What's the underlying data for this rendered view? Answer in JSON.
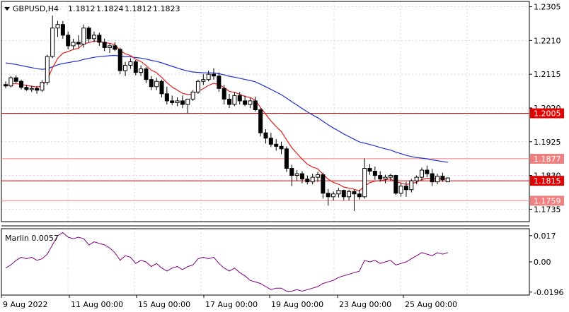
{
  "chart_data": {
    "type": "candlestick",
    "header": {
      "symbol": "GBPUSD,H4",
      "open": "1.1812",
      "high": "1.1824",
      "low": "1.1812",
      "close": "1.1823"
    },
    "price_axis": {
      "ticks": [
        "1.2305",
        "1.2210",
        "1.2115",
        "1.2020",
        "1.1925",
        "1.1830",
        "1.1735"
      ]
    },
    "levels": [
      {
        "label": "1.2005",
        "value": 1.2005,
        "color": "#e00000"
      },
      {
        "label": "1.1877",
        "value": 1.1877,
        "color": "#f08080"
      },
      {
        "label": "1.1815",
        "value": 1.1815,
        "color": "#e00000"
      },
      {
        "label": "1.1759",
        "value": 1.1759,
        "color": "#f08080"
      }
    ],
    "x_labels": [
      "9 Aug 2022",
      "11 Aug 00:00",
      "15 Aug 00:00",
      "17 Aug 00:00",
      "19 Aug 00:00",
      "23 Aug 00:00",
      "25 Aug 00:00"
    ],
    "candles": [
      [
        1.2086,
        1.2095,
        1.2075,
        1.2082
      ],
      [
        1.2082,
        1.211,
        1.2078,
        1.2105
      ],
      [
        1.2105,
        1.2112,
        1.209,
        1.2095
      ],
      [
        1.2095,
        1.21,
        1.2072,
        1.2078
      ],
      [
        1.2078,
        1.2085,
        1.2068,
        1.2072
      ],
      [
        1.2072,
        1.2082,
        1.2065,
        1.2075
      ],
      [
        1.2075,
        1.2082,
        1.206,
        1.207
      ],
      [
        1.207,
        1.2098,
        1.2065,
        1.2092
      ],
      [
        1.2092,
        1.217,
        1.2085,
        1.2165
      ],
      [
        1.2165,
        1.228,
        1.216,
        1.2245
      ],
      [
        1.2245,
        1.2265,
        1.222,
        1.2255
      ],
      [
        1.2255,
        1.2265,
        1.2215,
        1.2225
      ],
      [
        1.2225,
        1.2235,
        1.2185,
        1.2195
      ],
      [
        1.2195,
        1.2215,
        1.2185,
        1.2205
      ],
      [
        1.2205,
        1.2225,
        1.219,
        1.22
      ],
      [
        1.22,
        1.2255,
        1.219,
        1.2245
      ],
      [
        1.2245,
        1.225,
        1.2205,
        1.2215
      ],
      [
        1.2215,
        1.2235,
        1.2205,
        1.2225
      ],
      [
        1.2225,
        1.2232,
        1.2195,
        1.2205
      ],
      [
        1.2205,
        1.2215,
        1.218,
        1.219
      ],
      [
        1.219,
        1.22,
        1.2175,
        1.2195
      ],
      [
        1.2195,
        1.2205,
        1.218,
        1.2185
      ],
      [
        1.2185,
        1.219,
        1.2115,
        1.2125
      ],
      [
        1.2125,
        1.215,
        1.211,
        1.214
      ],
      [
        1.214,
        1.216,
        1.213,
        1.215
      ],
      [
        1.215,
        1.2155,
        1.2112,
        1.212
      ],
      [
        1.212,
        1.214,
        1.211,
        1.213
      ],
      [
        1.213,
        1.2135,
        1.209,
        1.21
      ],
      [
        1.21,
        1.211,
        1.207,
        1.208
      ],
      [
        1.208,
        1.2105,
        1.207,
        1.2095
      ],
      [
        1.2095,
        1.21,
        1.205,
        1.206
      ],
      [
        1.206,
        1.208,
        1.203,
        1.204
      ],
      [
        1.204,
        1.2055,
        1.2028,
        1.2035
      ],
      [
        1.2035,
        1.205,
        1.2025,
        1.204
      ],
      [
        1.204,
        1.2055,
        1.202,
        1.203
      ],
      [
        1.203,
        1.2045,
        1.2005,
        1.2045
      ],
      [
        1.2045,
        1.207,
        1.204,
        1.2065
      ],
      [
        1.2065,
        1.21,
        1.206,
        1.2095
      ],
      [
        1.2095,
        1.2115,
        1.2085,
        1.21
      ],
      [
        1.21,
        1.2125,
        1.2095,
        1.2115
      ],
      [
        1.2115,
        1.2132,
        1.21,
        1.211
      ],
      [
        1.211,
        1.212,
        1.2065,
        1.2075
      ],
      [
        1.2075,
        1.2085,
        1.203,
        1.2045
      ],
      [
        1.2045,
        1.206,
        1.202,
        1.203
      ],
      [
        1.203,
        1.2065,
        1.2025,
        1.2055
      ],
      [
        1.2055,
        1.2065,
        1.203,
        1.204
      ],
      [
        1.204,
        1.2055,
        1.2025,
        1.203
      ],
      [
        1.203,
        1.2048,
        1.202,
        1.204
      ],
      [
        1.204,
        1.2052,
        1.201,
        1.2015
      ],
      [
        1.2015,
        1.202,
        1.194,
        1.195
      ],
      [
        1.195,
        1.196,
        1.192,
        1.1935
      ],
      [
        1.1935,
        1.195,
        1.191,
        1.1918
      ],
      [
        1.1918,
        1.1932,
        1.19,
        1.1912
      ],
      [
        1.1912,
        1.1925,
        1.189,
        1.1905
      ],
      [
        1.1905,
        1.1912,
        1.184,
        1.185
      ],
      [
        1.185,
        1.186,
        1.18,
        1.183
      ],
      [
        1.183,
        1.1845,
        1.1815,
        1.1835
      ],
      [
        1.1835,
        1.1842,
        1.1808,
        1.182
      ],
      [
        1.182,
        1.183,
        1.1805,
        1.1812
      ],
      [
        1.1812,
        1.1835,
        1.1805,
        1.1825
      ],
      [
        1.1825,
        1.184,
        1.1812,
        1.1832
      ],
      [
        1.1832,
        1.1838,
        1.1765,
        1.178
      ],
      [
        1.178,
        1.1792,
        1.1745,
        1.177
      ],
      [
        1.177,
        1.1785,
        1.176,
        1.1778
      ],
      [
        1.1778,
        1.1795,
        1.1768,
        1.1788
      ],
      [
        1.1788,
        1.179,
        1.176,
        1.177
      ],
      [
        1.177,
        1.179,
        1.176,
        1.1785
      ],
      [
        1.1785,
        1.179,
        1.173,
        1.1778
      ],
      [
        1.1778,
        1.179,
        1.1762,
        1.177
      ],
      [
        1.177,
        1.1878,
        1.1765,
        1.185
      ],
      [
        1.185,
        1.1862,
        1.1832,
        1.1842
      ],
      [
        1.1842,
        1.1855,
        1.1818,
        1.183
      ],
      [
        1.183,
        1.1842,
        1.1812,
        1.182
      ],
      [
        1.182,
        1.1832,
        1.1808,
        1.1825
      ],
      [
        1.1825,
        1.1835,
        1.1815,
        1.183
      ],
      [
        1.183,
        1.1832,
        1.1775,
        1.178
      ],
      [
        1.178,
        1.1808,
        1.177,
        1.18
      ],
      [
        1.18,
        1.1812,
        1.177,
        1.179
      ],
      [
        1.179,
        1.182,
        1.1782,
        1.1815
      ],
      [
        1.1815,
        1.183,
        1.1805,
        1.1825
      ],
      [
        1.1825,
        1.1852,
        1.1815,
        1.1845
      ],
      [
        1.1845,
        1.1858,
        1.1825,
        1.1835
      ],
      [
        1.1835,
        1.1848,
        1.18,
        1.1812
      ],
      [
        1.1812,
        1.1835,
        1.1805,
        1.1828
      ],
      [
        1.1828,
        1.1838,
        1.1812,
        1.1818
      ],
      [
        1.1812,
        1.1824,
        1.1812,
        1.1823
      ]
    ],
    "indicator": {
      "label": "Marlin 0.0057",
      "ticks": [
        "0.017",
        "0.00",
        "-0.0196"
      ],
      "range": [
        -0.0215,
        0.0215
      ],
      "color": "#800080",
      "values": [
        -0.004,
        -0.002,
        0.001,
        0.003,
        0.002,
        0.003,
        0.001,
        0.002,
        0.005,
        0.011,
        0.017,
        0.019,
        0.016,
        0.015,
        0.016,
        0.015,
        0.011,
        0.013,
        0.012,
        0.011,
        0.009,
        0.006,
        0.001,
        0.004,
        0.003,
        -0.001,
        0.001,
        0.0,
        -0.003,
        -0.001,
        -0.004,
        -0.006,
        -0.004,
        -0.003,
        -0.005,
        -0.003,
        -0.002,
        0.002,
        0.003,
        0.002,
        0.003,
        -0.001,
        -0.004,
        -0.006,
        -0.004,
        -0.007,
        -0.009,
        -0.012,
        -0.013,
        -0.014,
        -0.016,
        -0.018,
        -0.017,
        -0.017,
        -0.019,
        -0.019,
        -0.018,
        -0.019,
        -0.018,
        -0.017,
        -0.016,
        -0.014,
        -0.013,
        -0.012,
        -0.01,
        -0.009,
        -0.008,
        -0.007,
        -0.006,
        0.001,
        0.0,
        0.001,
        -0.001,
        0.0,
        0.001,
        -0.002,
        -0.001,
        0.0,
        0.002,
        0.004,
        0.006,
        0.005,
        0.004,
        0.006,
        0.005,
        0.006
      ]
    },
    "grid": true
  }
}
